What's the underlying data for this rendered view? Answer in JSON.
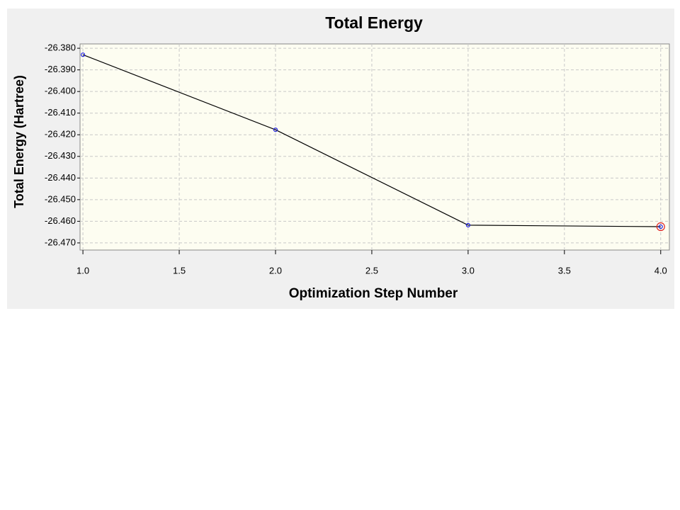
{
  "chart_data": {
    "type": "line",
    "title": "Total Energy",
    "x_label": "Optimization Step Number",
    "y_label": "Total Energy (Hartree)",
    "x": [
      1,
      2,
      3,
      4
    ],
    "series": [
      {
        "name": "Total Energy",
        "color": "#000000",
        "marker_color": "#2020e0",
        "values": [
          -26.383,
          -26.4177,
          -26.4618,
          -26.4625
        ]
      }
    ],
    "xlim": [
      0.985,
      4.045
    ],
    "xticks": [
      {
        "value": 1,
        "label": "1.0"
      },
      1.5,
      {
        "value": 2,
        "label": "2.0"
      },
      2.5,
      {
        "value": 3,
        "label": "3.0"
      },
      3.5,
      {
        "value": 4,
        "label": "4.0"
      }
    ],
    "ylim": [
      -26.4733,
      -26.378
    ],
    "yticks": [
      {
        "value": -26.38,
        "label": "-26.380"
      },
      {
        "value": -26.39,
        "label": "-26.390"
      },
      {
        "value": -26.4,
        "label": "-26.400"
      },
      {
        "value": -26.41,
        "label": "-26.410"
      },
      {
        "value": -26.42,
        "label": "-26.420"
      },
      {
        "value": -26.43,
        "label": "-26.430"
      },
      {
        "value": -26.44,
        "label": "-26.440"
      },
      {
        "value": -26.45,
        "label": "-26.450"
      },
      {
        "value": -26.46,
        "label": "-26.460"
      },
      {
        "value": -26.47,
        "label": "-26.470"
      }
    ],
    "grid": true,
    "highlight_color": "#e02020"
  }
}
